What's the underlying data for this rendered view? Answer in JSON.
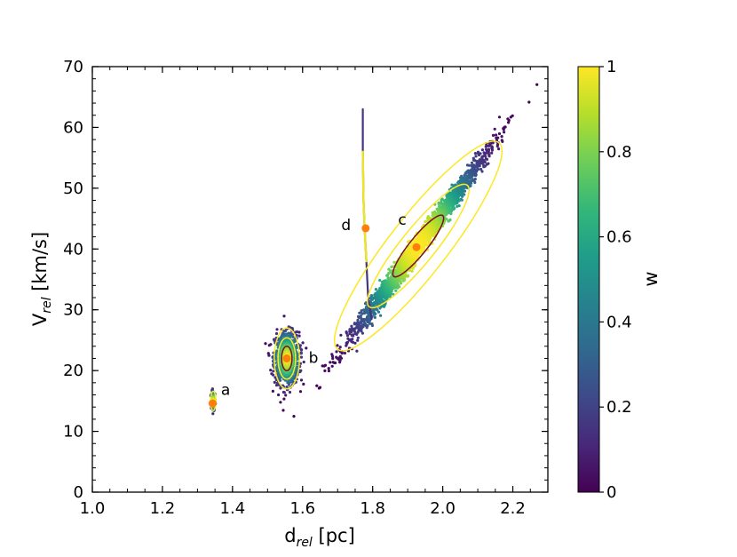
{
  "chart_data": {
    "type": "scatter",
    "subtype": "density-weighted scatter with contours and colorbar",
    "xlabel": {
      "main": "d",
      "sub": "rel",
      "unit": " [pc]"
    },
    "ylabel": {
      "main": "V",
      "sub": "rel",
      "unit": " [km/s]"
    },
    "xlim": [
      1.0,
      2.3
    ],
    "ylim": [
      0,
      70
    ],
    "xticks": [
      1.0,
      1.2,
      1.4,
      1.6,
      1.8,
      2.0,
      2.2
    ],
    "xtick_labels": [
      "1.0",
      "1.2",
      "1.4",
      "1.6",
      "1.8",
      "2.0",
      "2.2"
    ],
    "yticks": [
      0,
      10,
      20,
      30,
      40,
      50,
      60,
      70
    ],
    "ytick_labels": [
      "0",
      "10",
      "20",
      "30",
      "40",
      "50",
      "60",
      "70"
    ],
    "colorbar": {
      "label": "w",
      "range": [
        0,
        1
      ],
      "ticks": [
        0,
        0.2,
        0.4,
        0.6,
        0.8,
        1
      ],
      "tick_labels": [
        "0",
        "0.2",
        "0.4",
        "0.6",
        "0.8",
        "1"
      ],
      "colormap": [
        "#440154",
        "#482878",
        "#3e4989",
        "#31688e",
        "#26828e",
        "#1f9e89",
        "#35b779",
        "#6ece58",
        "#b5de2b",
        "#fde725"
      ]
    },
    "clusters": [
      {
        "id": "a",
        "label": "a",
        "center": [
          1.345,
          15.0
        ],
        "marker": [
          1.343,
          14.6
        ],
        "spread_x": 0.012,
        "spread_y": 3.2,
        "tilt": 0.0,
        "contours": [
          {
            "w": 0.9,
            "dx": 0.006,
            "dy": 1.6
          }
        ]
      },
      {
        "id": "b",
        "label": "b",
        "center": [
          1.555,
          22.0
        ],
        "marker": [
          1.555,
          22.0
        ],
        "spread_x": 0.07,
        "spread_y": 8.5,
        "tilt": 0.0,
        "contours": [
          {
            "w": 0.8,
            "dx": 0.036,
            "dy": 5.0
          },
          {
            "w": 0.5,
            "dx": 0.025,
            "dy": 3.4
          },
          {
            "w": 0.95,
            "dx": 0.015,
            "dy": 2.0
          }
        ]
      },
      {
        "id": "c",
        "label": "c",
        "center": [
          1.93,
          40.5
        ],
        "marker": [
          1.925,
          40.3
        ],
        "spread_x": 0.42,
        "spread_y": 33.0,
        "tilt": 1.0,
        "contours": [
          {
            "w": 0.85,
            "dx": 0.23,
            "dy": 17.0
          },
          {
            "w": 0.97,
            "dx": 0.14,
            "dy": 10.0
          },
          {
            "w": 1.0,
            "dx": 0.07,
            "dy": 5.0
          }
        ]
      }
    ],
    "track_d": {
      "label": "d",
      "points": [
        [
          1.772,
          63.0
        ],
        [
          1.772,
          56.0
        ],
        [
          1.774,
          48.0
        ],
        [
          1.777,
          43.5
        ],
        [
          1.782,
          38.0
        ],
        [
          1.787,
          32.0
        ],
        [
          1.797,
          28.5
        ]
      ],
      "marker": [
        1.78,
        43.4
      ],
      "bright_range": [
        33.0,
        56.0
      ]
    },
    "marker_color": "#ff7f0e",
    "contour_colors": {
      "outer": "#fde725",
      "inner": "#7a1026"
    }
  }
}
